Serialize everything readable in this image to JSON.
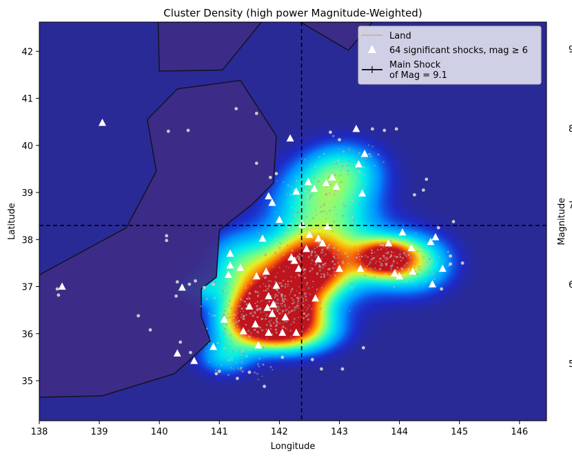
{
  "chart_data": {
    "type": "heatmap",
    "title": "Cluster Density (high power Magnitude-Weighted)",
    "xlabel": "Longitude",
    "ylabel": "Latitude",
    "colorbar_label": "Magnitude",
    "colorbar_ticks": [
      "9",
      "8",
      "7",
      "6",
      "5"
    ],
    "xlim": [
      138,
      146.45
    ],
    "ylim": [
      34.15,
      42.62
    ],
    "xticks": [
      138,
      139,
      140,
      141,
      142,
      143,
      144,
      145,
      146
    ],
    "yticks": [
      35,
      36,
      37,
      38,
      39,
      40,
      41,
      42
    ],
    "grid": false,
    "legend_position": "top-right",
    "legend": [
      {
        "label": "Land",
        "marker": "line"
      },
      {
        "label": "64 significant shocks, mag ≥ 6",
        "marker": "triangle"
      },
      {
        "label": "Main Shock\nof Mag = 9.1",
        "marker": "crosshair"
      }
    ],
    "main_shock": {
      "lon": 142.37,
      "lat": 38.3,
      "mag": 9.1
    },
    "colors": {
      "background": "#2a2a96",
      "land_fill": "#3e2c86",
      "land_edge": "#141428",
      "shock_marker": "#ffffff",
      "small_event": "#c8c8c8"
    },
    "density_blobs": [
      {
        "lon": 141.85,
        "lat": 36.45,
        "sx": 0.38,
        "sy": 0.38,
        "w": 1.0
      },
      {
        "lon": 142.1,
        "lat": 36.75,
        "sx": 0.45,
        "sy": 0.55,
        "w": 0.85
      },
      {
        "lon": 143.75,
        "lat": 37.6,
        "sx": 0.32,
        "sy": 0.25,
        "w": 0.95
      },
      {
        "lon": 142.55,
        "lat": 37.45,
        "sx": 0.4,
        "sy": 0.4,
        "w": 0.7
      },
      {
        "lon": 142.9,
        "lat": 37.6,
        "sx": 0.8,
        "sy": 0.65,
        "w": 0.45
      },
      {
        "lon": 142.7,
        "lat": 38.8,
        "sx": 0.6,
        "sy": 0.6,
        "w": 0.45
      },
      {
        "lon": 143.1,
        "lat": 39.5,
        "sx": 0.5,
        "sy": 0.45,
        "w": 0.35
      },
      {
        "lon": 141.5,
        "lat": 36.2,
        "sx": 0.45,
        "sy": 0.35,
        "w": 0.5
      },
      {
        "lon": 141.3,
        "lat": 37.4,
        "sx": 0.45,
        "sy": 0.55,
        "w": 0.4
      },
      {
        "lon": 144.3,
        "lat": 37.5,
        "sx": 0.45,
        "sy": 0.45,
        "w": 0.45
      },
      {
        "lon": 141.1,
        "lat": 35.5,
        "sx": 0.35,
        "sy": 0.3,
        "w": 0.35
      },
      {
        "lon": 140.6,
        "lat": 36.95,
        "sx": 0.3,
        "sy": 0.25,
        "w": 0.25
      },
      {
        "lon": 142.4,
        "lat": 36.05,
        "sx": 0.5,
        "sy": 0.35,
        "w": 0.45
      }
    ],
    "land_polygons": [
      [
        [
          138,
          37.25
        ],
        [
          139.45,
          38.25
        ],
        [
          139.95,
          39.45
        ],
        [
          139.8,
          40.55
        ],
        [
          140.3,
          41.2
        ],
        [
          141.35,
          41.38
        ],
        [
          141.95,
          40.2
        ],
        [
          141.9,
          39.2
        ],
        [
          141.55,
          38.75
        ],
        [
          141.0,
          38.2
        ],
        [
          140.95,
          37.2
        ],
        [
          140.7,
          36.95
        ],
        [
          140.7,
          36.35
        ],
        [
          140.85,
          35.85
        ],
        [
          140.6,
          35.55
        ],
        [
          140.25,
          35.15
        ],
        [
          139.05,
          34.68
        ],
        [
          138,
          34.65
        ]
      ],
      [
        [
          139.98,
          42.62
        ],
        [
          140.0,
          41.58
        ],
        [
          141.05,
          41.6
        ],
        [
          141.7,
          42.62
        ]
      ],
      [
        [
          142.35,
          42.62
        ],
        [
          143.15,
          42.02
        ],
        [
          143.55,
          42.62
        ]
      ]
    ],
    "significant_shocks": [
      {
        "lon": 139.05,
        "lat": 40.48
      },
      {
        "lon": 138.38,
        "lat": 37.0
      },
      {
        "lon": 140.38,
        "lat": 36.98
      },
      {
        "lon": 140.3,
        "lat": 35.58
      },
      {
        "lon": 140.58,
        "lat": 35.42
      },
      {
        "lon": 140.9,
        "lat": 35.72
      },
      {
        "lon": 141.08,
        "lat": 36.3
      },
      {
        "lon": 141.18,
        "lat": 37.7
      },
      {
        "lon": 141.18,
        "lat": 37.45
      },
      {
        "lon": 141.15,
        "lat": 37.25
      },
      {
        "lon": 141.35,
        "lat": 37.4
      },
      {
        "lon": 141.5,
        "lat": 36.58
      },
      {
        "lon": 141.6,
        "lat": 36.2
      },
      {
        "lon": 141.62,
        "lat": 37.22
      },
      {
        "lon": 141.65,
        "lat": 35.75
      },
      {
        "lon": 141.72,
        "lat": 38.02
      },
      {
        "lon": 141.78,
        "lat": 37.32
      },
      {
        "lon": 141.8,
        "lat": 36.55
      },
      {
        "lon": 141.82,
        "lat": 36.8
      },
      {
        "lon": 141.82,
        "lat": 36.02
      },
      {
        "lon": 141.82,
        "lat": 38.92
      },
      {
        "lon": 141.88,
        "lat": 38.78
      },
      {
        "lon": 141.88,
        "lat": 36.42
      },
      {
        "lon": 141.9,
        "lat": 36.62
      },
      {
        "lon": 142.0,
        "lat": 38.42
      },
      {
        "lon": 142.05,
        "lat": 36.02
      },
      {
        "lon": 142.18,
        "lat": 40.15
      },
      {
        "lon": 142.2,
        "lat": 37.62
      },
      {
        "lon": 142.25,
        "lat": 37.55
      },
      {
        "lon": 142.28,
        "lat": 36.02
      },
      {
        "lon": 142.28,
        "lat": 39.02
      },
      {
        "lon": 142.32,
        "lat": 37.38
      },
      {
        "lon": 142.38,
        "lat": 38.32
      },
      {
        "lon": 142.45,
        "lat": 37.8
      },
      {
        "lon": 142.48,
        "lat": 39.22
      },
      {
        "lon": 142.5,
        "lat": 38.1
      },
      {
        "lon": 142.58,
        "lat": 39.08
      },
      {
        "lon": 142.65,
        "lat": 37.58
      },
      {
        "lon": 142.65,
        "lat": 38.02
      },
      {
        "lon": 142.72,
        "lat": 37.92
      },
      {
        "lon": 142.78,
        "lat": 39.2
      },
      {
        "lon": 142.8,
        "lat": 38.28
      },
      {
        "lon": 142.88,
        "lat": 39.32
      },
      {
        "lon": 142.95,
        "lat": 39.12
      },
      {
        "lon": 143.0,
        "lat": 37.38
      },
      {
        "lon": 143.28,
        "lat": 40.35
      },
      {
        "lon": 143.32,
        "lat": 39.6
      },
      {
        "lon": 143.38,
        "lat": 38.98
      },
      {
        "lon": 143.35,
        "lat": 37.38
      },
      {
        "lon": 143.42,
        "lat": 39.82
      },
      {
        "lon": 143.82,
        "lat": 37.92
      },
      {
        "lon": 143.92,
        "lat": 37.28
      },
      {
        "lon": 144.0,
        "lat": 37.22
      },
      {
        "lon": 144.05,
        "lat": 38.15
      },
      {
        "lon": 144.2,
        "lat": 37.82
      },
      {
        "lon": 144.22,
        "lat": 37.32
      },
      {
        "lon": 144.52,
        "lat": 37.95
      },
      {
        "lon": 144.55,
        "lat": 37.05
      },
      {
        "lon": 144.6,
        "lat": 38.05
      },
      {
        "lon": 144.72,
        "lat": 37.38
      },
      {
        "lon": 142.1,
        "lat": 36.35
      },
      {
        "lon": 141.95,
        "lat": 37.02
      },
      {
        "lon": 142.6,
        "lat": 36.75
      },
      {
        "lon": 141.4,
        "lat": 36.05
      }
    ],
    "small_events": [
      {
        "lon": 140.15,
        "lat": 40.3
      },
      {
        "lon": 140.48,
        "lat": 40.32
      },
      {
        "lon": 141.28,
        "lat": 40.78
      },
      {
        "lon": 141.62,
        "lat": 40.68
      },
      {
        "lon": 141.62,
        "lat": 39.62
      },
      {
        "lon": 141.95,
        "lat": 39.4
      },
      {
        "lon": 141.85,
        "lat": 39.32
      },
      {
        "lon": 140.12,
        "lat": 38.08
      },
      {
        "lon": 140.12,
        "lat": 37.98
      },
      {
        "lon": 138.3,
        "lat": 36.95
      },
      {
        "lon": 138.32,
        "lat": 36.82
      },
      {
        "lon": 139.65,
        "lat": 36.38
      },
      {
        "lon": 139.85,
        "lat": 36.08
      },
      {
        "lon": 140.35,
        "lat": 35.82
      },
      {
        "lon": 140.52,
        "lat": 35.6
      },
      {
        "lon": 141.75,
        "lat": 34.88
      },
      {
        "lon": 140.3,
        "lat": 37.1
      },
      {
        "lon": 140.5,
        "lat": 37.05
      },
      {
        "lon": 140.6,
        "lat": 37.12
      },
      {
        "lon": 140.75,
        "lat": 36.98
      },
      {
        "lon": 140.9,
        "lat": 37.05
      },
      {
        "lon": 140.28,
        "lat": 36.8
      },
      {
        "lon": 142.85,
        "lat": 40.28
      },
      {
        "lon": 143.0,
        "lat": 40.12
      },
      {
        "lon": 143.55,
        "lat": 40.35
      },
      {
        "lon": 143.75,
        "lat": 40.32
      },
      {
        "lon": 143.95,
        "lat": 40.35
      },
      {
        "lon": 144.4,
        "lat": 39.05
      },
      {
        "lon": 144.45,
        "lat": 39.28
      },
      {
        "lon": 144.25,
        "lat": 38.95
      },
      {
        "lon": 144.65,
        "lat": 38.25
      },
      {
        "lon": 144.9,
        "lat": 38.38
      },
      {
        "lon": 144.85,
        "lat": 37.65
      },
      {
        "lon": 144.85,
        "lat": 37.48
      },
      {
        "lon": 145.05,
        "lat": 37.5
      },
      {
        "lon": 144.7,
        "lat": 36.95
      },
      {
        "lon": 142.55,
        "lat": 35.45
      },
      {
        "lon": 142.7,
        "lat": 35.25
      },
      {
        "lon": 142.05,
        "lat": 35.5
      },
      {
        "lon": 141.3,
        "lat": 35.05
      },
      {
        "lon": 141.5,
        "lat": 35.18
      },
      {
        "lon": 140.95,
        "lat": 35.15
      },
      {
        "lon": 141.0,
        "lat": 35.2
      },
      {
        "lon": 143.05,
        "lat": 35.25
      },
      {
        "lon": 143.4,
        "lat": 35.7
      }
    ]
  }
}
